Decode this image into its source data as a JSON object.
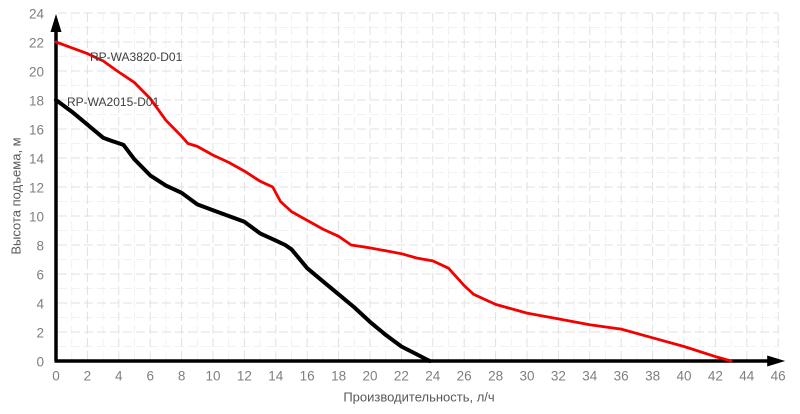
{
  "chart_data": {
    "type": "line",
    "title": "",
    "xlabel": "Производительность, л/ч",
    "ylabel": "Высота подъема, м",
    "xlim": [
      0,
      46
    ],
    "ylim": [
      0,
      24
    ],
    "x_ticks": [
      0,
      2,
      4,
      6,
      8,
      10,
      12,
      14,
      16,
      18,
      20,
      22,
      24,
      26,
      28,
      30,
      32,
      34,
      36,
      38,
      40,
      42,
      44,
      46
    ],
    "y_ticks": [
      0,
      2,
      4,
      6,
      8,
      10,
      12,
      14,
      16,
      18,
      20,
      22,
      24
    ],
    "grid": {
      "major_step": 2,
      "minor_step": 1,
      "major_color": "#e0e0e0",
      "minor_color": "#f2f2f2"
    },
    "legend_position": "inline-annotations",
    "axis_color": "#000000",
    "tick_label_color": "#7f7f7f",
    "axis_title_color": "#595959",
    "series": [
      {
        "name": "RP-WA3820-D01",
        "color": "#f40000",
        "points": [
          [
            0,
            22
          ],
          [
            1,
            21.6
          ],
          [
            2,
            21.2
          ],
          [
            3,
            20.7
          ],
          [
            3.9,
            20
          ],
          [
            5,
            19.2
          ],
          [
            6,
            18.1
          ],
          [
            7,
            16.6
          ],
          [
            8,
            15.5
          ],
          [
            8.4,
            15
          ],
          [
            9,
            14.8
          ],
          [
            10,
            14.2
          ],
          [
            11,
            13.7
          ],
          [
            12,
            13.1
          ],
          [
            13,
            12.4
          ],
          [
            13.8,
            12
          ],
          [
            14.3,
            11
          ],
          [
            15,
            10.3
          ],
          [
            16,
            9.7
          ],
          [
            17,
            9.1
          ],
          [
            18,
            8.6
          ],
          [
            18.8,
            8
          ],
          [
            20,
            7.8
          ],
          [
            21,
            7.6
          ],
          [
            22,
            7.4
          ],
          [
            23,
            7.1
          ],
          [
            24,
            6.9
          ],
          [
            25,
            6.4
          ],
          [
            26,
            5.2
          ],
          [
            26.6,
            4.6
          ],
          [
            28,
            3.9
          ],
          [
            30,
            3.3
          ],
          [
            32,
            2.9
          ],
          [
            34,
            2.5
          ],
          [
            36,
            2.2
          ],
          [
            38,
            1.6
          ],
          [
            40,
            1.0
          ],
          [
            42,
            0.3
          ],
          [
            43,
            0
          ]
        ]
      },
      {
        "name": "RP-WA2015-D01",
        "color": "#000000",
        "points": [
          [
            0,
            18
          ],
          [
            1,
            17.2
          ],
          [
            2,
            16.3
          ],
          [
            3,
            15.4
          ],
          [
            3.5,
            15.2
          ],
          [
            4.3,
            14.9
          ],
          [
            5,
            13.9
          ],
          [
            6,
            12.8
          ],
          [
            7,
            12.1
          ],
          [
            8,
            11.6
          ],
          [
            9,
            10.8
          ],
          [
            10,
            10.4
          ],
          [
            11,
            10
          ],
          [
            12,
            9.6
          ],
          [
            13,
            8.8
          ],
          [
            14,
            8.3
          ],
          [
            14.6,
            8
          ],
          [
            15,
            7.7
          ],
          [
            16,
            6.4
          ],
          [
            17,
            5.5
          ],
          [
            18,
            4.6
          ],
          [
            19,
            3.7
          ],
          [
            20,
            2.7
          ],
          [
            21,
            1.8
          ],
          [
            22,
            1.0
          ],
          [
            23,
            0.45
          ],
          [
            23.8,
            0
          ]
        ]
      }
    ]
  }
}
